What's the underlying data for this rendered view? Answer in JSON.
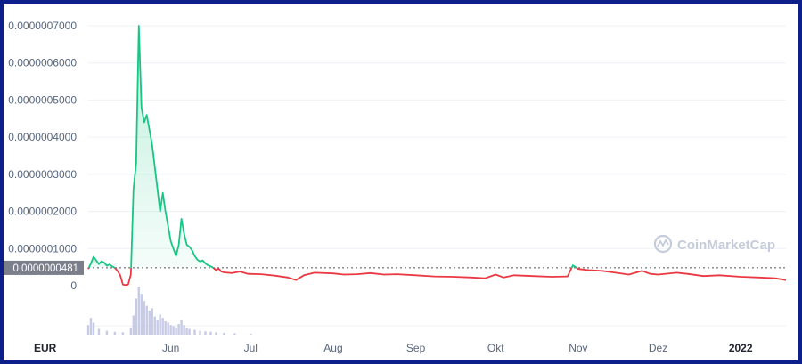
{
  "chart_data": {
    "type": "line",
    "currency": "EUR",
    "watermark": "CoinMarketCap",
    "y_ticks": [
      "0.0000007000",
      "0.0000006000",
      "0.0000005000",
      "0.0000004000",
      "0.0000003000",
      "0.0000002000",
      "0.0000001000",
      "0"
    ],
    "ylim": [
      0,
      7e-07
    ],
    "x_ticks": [
      {
        "label": "Jun",
        "date": "2021-06-01"
      },
      {
        "label": "Jul",
        "date": "2021-07-01"
      },
      {
        "label": "Aug",
        "date": "2021-08-01"
      },
      {
        "label": "Sep",
        "date": "2021-09-01"
      },
      {
        "label": "Okt",
        "date": "2021-10-01"
      },
      {
        "label": "Nov",
        "date": "2021-11-01"
      },
      {
        "label": "Dez",
        "date": "2021-12-01"
      },
      {
        "label": "2022",
        "date": "2022-01-01"
      }
    ],
    "xlim": [
      "2021-05-01",
      "2022-01-18"
    ],
    "current_price": 4.81e-08,
    "current_price_label": "0.0000000481",
    "reference_line": 4.81e-08,
    "up_color": "#16c784",
    "down_color": "#ea3943",
    "volume_color": "#c7cbe6",
    "series": [
      {
        "points": [
          [
            "2021-05-01",
            4.5e-08
          ],
          [
            "2021-05-02",
            6e-08
          ],
          [
            "2021-05-03",
            7.8e-08
          ],
          [
            "2021-05-04",
            6.8e-08
          ],
          [
            "2021-05-05",
            5.8e-08
          ],
          [
            "2021-05-06",
            6.6e-08
          ],
          [
            "2021-05-07",
            6.2e-08
          ],
          [
            "2021-05-08",
            5.4e-08
          ],
          [
            "2021-05-09",
            5.7e-08
          ],
          [
            "2021-05-10",
            5.2e-08
          ],
          [
            "2021-05-11",
            4.8e-08
          ],
          [
            "2021-05-12",
            4e-08
          ],
          [
            "2021-05-13",
            2.8e-08
          ],
          [
            "2021-05-14",
            3e-09
          ],
          [
            "2021-05-15",
            2e-09
          ],
          [
            "2021-05-16",
            3e-09
          ],
          [
            "2021-05-17",
            3e-08
          ],
          [
            "2021-05-18",
            2.6e-07
          ],
          [
            "2021-05-19",
            3.3e-07
          ],
          [
            "2021-05-20",
            7e-07
          ],
          [
            "2021-05-21",
            4.8e-07
          ],
          [
            "2021-05-22",
            4.4e-07
          ],
          [
            "2021-05-23",
            4.6e-07
          ],
          [
            "2021-05-24",
            4.2e-07
          ],
          [
            "2021-05-25",
            3.8e-07
          ],
          [
            "2021-05-26",
            3.2e-07
          ],
          [
            "2021-05-27",
            2.6e-07
          ],
          [
            "2021-05-28",
            2e-07
          ],
          [
            "2021-05-29",
            2.5e-07
          ],
          [
            "2021-05-30",
            2e-07
          ],
          [
            "2021-05-31",
            1.6e-07
          ],
          [
            "2021-06-01",
            1.2e-07
          ],
          [
            "2021-06-02",
            1e-07
          ],
          [
            "2021-06-03",
            8e-08
          ],
          [
            "2021-06-04",
            1.1e-07
          ],
          [
            "2021-06-05",
            1.8e-07
          ],
          [
            "2021-06-06",
            1.4e-07
          ],
          [
            "2021-06-07",
            1.1e-07
          ],
          [
            "2021-06-08",
            1.05e-07
          ],
          [
            "2021-06-09",
            9.5e-08
          ],
          [
            "2021-06-10",
            8e-08
          ],
          [
            "2021-06-11",
            7e-08
          ],
          [
            "2021-06-12",
            6.5e-08
          ],
          [
            "2021-06-13",
            6.8e-08
          ],
          [
            "2021-06-14",
            6e-08
          ],
          [
            "2021-06-15",
            5.5e-08
          ],
          [
            "2021-06-16",
            5.2e-08
          ],
          [
            "2021-06-17",
            4.8e-08
          ],
          [
            "2021-06-18",
            4.2e-08
          ],
          [
            "2021-06-19",
            4.6e-08
          ],
          [
            "2021-06-20",
            3.8e-08
          ],
          [
            "2021-06-21",
            3.6e-08
          ],
          [
            "2021-06-24",
            3.4e-08
          ],
          [
            "2021-06-27",
            3.8e-08
          ],
          [
            "2021-06-30",
            3.2e-08
          ],
          [
            "2021-07-05",
            3.1e-08
          ],
          [
            "2021-07-10",
            2.7e-08
          ],
          [
            "2021-07-15",
            2.2e-08
          ],
          [
            "2021-07-18",
            1.5e-08
          ],
          [
            "2021-07-21",
            2.8e-08
          ],
          [
            "2021-07-25",
            3.5e-08
          ],
          [
            "2021-08-01",
            3.3e-08
          ],
          [
            "2021-08-05",
            3e-08
          ],
          [
            "2021-08-10",
            3.1e-08
          ],
          [
            "2021-08-15",
            3.4e-08
          ],
          [
            "2021-08-20",
            3e-08
          ],
          [
            "2021-08-25",
            3.1e-08
          ],
          [
            "2021-09-01",
            2.8e-08
          ],
          [
            "2021-09-08",
            2.5e-08
          ],
          [
            "2021-09-15",
            2.4e-08
          ],
          [
            "2021-09-22",
            2.2e-08
          ],
          [
            "2021-09-27",
            2e-08
          ],
          [
            "2021-10-01",
            3e-08
          ],
          [
            "2021-10-04",
            2.2e-08
          ],
          [
            "2021-10-08",
            2.8e-08
          ],
          [
            "2021-10-15",
            2.6e-08
          ],
          [
            "2021-10-22",
            2.4e-08
          ],
          [
            "2021-10-28",
            2.5e-08
          ],
          [
            "2021-10-29",
            4e-08
          ],
          [
            "2021-10-30",
            5.5e-08
          ],
          [
            "2021-11-01",
            4.5e-08
          ],
          [
            "2021-11-05",
            4.2e-08
          ],
          [
            "2021-11-10",
            4e-08
          ],
          [
            "2021-11-15",
            3.5e-08
          ],
          [
            "2021-11-20",
            3e-08
          ],
          [
            "2021-11-25",
            4e-08
          ],
          [
            "2021-11-28",
            3.2e-08
          ],
          [
            "2021-12-01",
            3e-08
          ],
          [
            "2021-12-08",
            3.5e-08
          ],
          [
            "2021-12-12",
            3.2e-08
          ],
          [
            "2021-12-18",
            2.6e-08
          ],
          [
            "2021-12-24",
            2.8e-08
          ],
          [
            "2022-01-01",
            2.4e-08
          ],
          [
            "2022-01-08",
            2.2e-08
          ],
          [
            "2022-01-14",
            2e-08
          ],
          [
            "2022-01-18",
            1.5e-08
          ]
        ]
      }
    ],
    "volume": [
      [
        "2021-05-01",
        0.2
      ],
      [
        "2021-05-02",
        0.35
      ],
      [
        "2021-05-03",
        0.25
      ],
      [
        "2021-05-05",
        0.12
      ],
      [
        "2021-05-08",
        0.08
      ],
      [
        "2021-05-11",
        0.06
      ],
      [
        "2021-05-14",
        0.05
      ],
      [
        "2021-05-17",
        0.15
      ],
      [
        "2021-05-18",
        0.4
      ],
      [
        "2021-05-19",
        0.75
      ],
      [
        "2021-05-20",
        1.0
      ],
      [
        "2021-05-21",
        0.85
      ],
      [
        "2021-05-22",
        0.7
      ],
      [
        "2021-05-23",
        0.6
      ],
      [
        "2021-05-24",
        0.5
      ],
      [
        "2021-05-25",
        0.55
      ],
      [
        "2021-05-26",
        0.38
      ],
      [
        "2021-05-27",
        0.3
      ],
      [
        "2021-05-28",
        0.42
      ],
      [
        "2021-05-29",
        0.35
      ],
      [
        "2021-05-30",
        0.28
      ],
      [
        "2021-05-31",
        0.25
      ],
      [
        "2021-06-01",
        0.2
      ],
      [
        "2021-06-02",
        0.18
      ],
      [
        "2021-06-03",
        0.15
      ],
      [
        "2021-06-04",
        0.22
      ],
      [
        "2021-06-05",
        0.3
      ],
      [
        "2021-06-06",
        0.2
      ],
      [
        "2021-06-07",
        0.15
      ],
      [
        "2021-06-08",
        0.12
      ],
      [
        "2021-06-10",
        0.1
      ],
      [
        "2021-06-12",
        0.08
      ],
      [
        "2021-06-14",
        0.07
      ],
      [
        "2021-06-16",
        0.06
      ],
      [
        "2021-06-18",
        0.05
      ],
      [
        "2021-06-21",
        0.04
      ],
      [
        "2021-06-25",
        0.03
      ],
      [
        "2021-07-01",
        0.02
      ]
    ]
  }
}
